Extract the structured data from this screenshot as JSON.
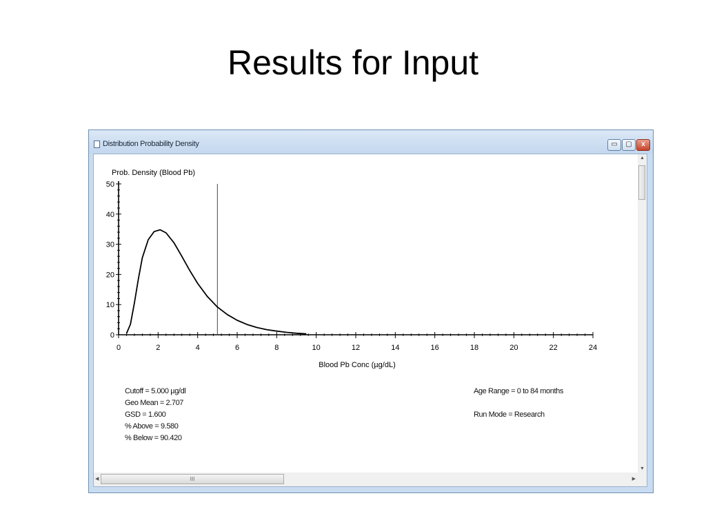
{
  "slide": {
    "title": "Results for Input"
  },
  "window": {
    "title": "Distribution Probability Density",
    "controls": {
      "minimize": "▭",
      "maximize": "▢",
      "close": "x"
    },
    "hscroll_grip": "III"
  },
  "chart_data": {
    "type": "line",
    "ylabel": "Prob. Density (Blood Pb)",
    "xlabel": "Blood Pb Conc (µg/dL)",
    "xlim": [
      0,
      24
    ],
    "ylim": [
      0,
      50
    ],
    "xticks": [
      0,
      2,
      4,
      6,
      8,
      10,
      12,
      14,
      16,
      18,
      20,
      22,
      24
    ],
    "yticks": [
      0,
      10,
      20,
      30,
      40,
      50
    ],
    "cutoff_line_x": 5.0,
    "curve": {
      "x": [
        0.4,
        0.6,
        0.8,
        1.0,
        1.2,
        1.5,
        1.8,
        2.1,
        2.4,
        2.8,
        3.2,
        3.6,
        4.0,
        4.5,
        5.0,
        5.5,
        6.0,
        6.5,
        7.0,
        7.5,
        8.0,
        8.5,
        9.0,
        9.5
      ],
      "y": [
        0.4,
        3.5,
        10.5,
        18.5,
        25.5,
        31.5,
        34.2,
        34.8,
        33.8,
        30.5,
        26.0,
        21.3,
        17.0,
        12.6,
        9.2,
        6.7,
        4.8,
        3.4,
        2.4,
        1.7,
        1.2,
        0.8,
        0.5,
        0.3
      ]
    },
    "stats": [
      "Cutoff = 5.000  µg/dl",
      "Geo Mean = 2.707",
      "GSD = 1.600",
      "% Above = 9.580",
      "% Below = 90.420"
    ],
    "age_range": "Age Range = 0 to 84 months",
    "run_mode": "Run Mode = Research"
  }
}
